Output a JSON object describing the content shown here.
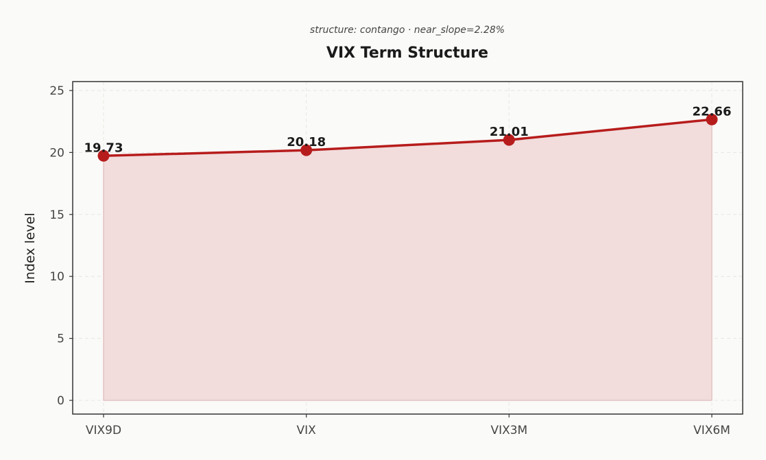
{
  "chart_data": {
    "type": "area",
    "subtitle": "structure: contango · near_slope=2.28%",
    "title": "VIX Term Structure",
    "xlabel": "",
    "ylabel": "Index level",
    "categories": [
      "VIX9D",
      "VIX",
      "VIX3M",
      "VIX6M"
    ],
    "series": [
      {
        "values": [
          19.73,
          20.18,
          21.01,
          22.66
        ],
        "labels": [
          "19.73",
          "20.18",
          "21.01",
          "22.66"
        ],
        "color": "#b71c1c",
        "fill_color": "#f2dcdc"
      }
    ],
    "ylim": [
      -1.1,
      25.8
    ],
    "yticks": [
      0,
      5,
      10,
      15,
      20,
      25
    ],
    "grid": true,
    "legend": "none"
  }
}
